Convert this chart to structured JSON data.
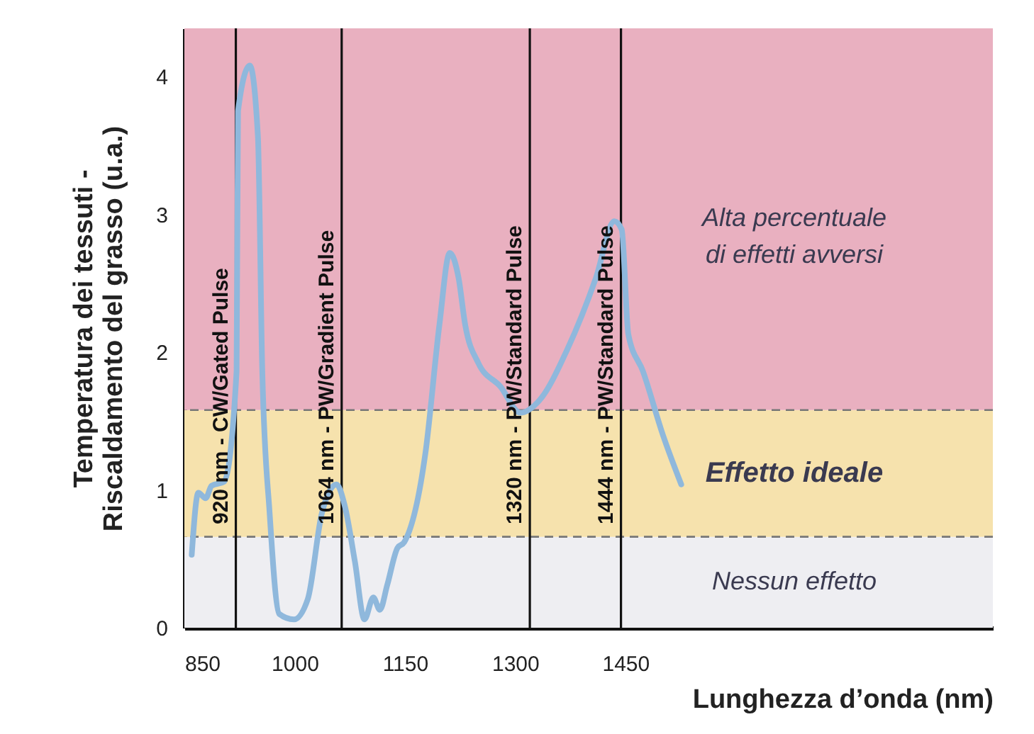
{
  "chart_data": {
    "type": "line",
    "xlabel": "Lunghezza d’onda (nm)",
    "ylabel": "Temperatura dei tessuti -\nRiscaldamento del grasso (u.a.)",
    "x": [
      860,
      869,
      879,
      887,
      904,
      921,
      923,
      939,
      950,
      956,
      966,
      979,
      999,
      1018,
      1037,
      1057,
      1068,
      1082,
      1095,
      1107,
      1116,
      1126,
      1140,
      1149,
      1178,
      1197,
      1211,
      1223,
      1232,
      1250,
      1280,
      1307,
      1333,
      1371,
      1410,
      1435,
      1445,
      1454,
      1474,
      1501,
      1526
    ],
    "series": [
      {
        "color": "#8fb8dc",
        "values": [
          0.53,
          0.98,
          0.94,
          1.03,
          1.06,
          1.86,
          3.75,
          4.08,
          3.57,
          1.86,
          0.83,
          0.1,
          0.06,
          0.21,
          0.83,
          1.04,
          0.89,
          0.48,
          0.06,
          0.22,
          0.13,
          0.31,
          0.58,
          0.62,
          1.27,
          2.2,
          2.72,
          2.54,
          2.2,
          1.92,
          1.75,
          1.56,
          1.65,
          2.02,
          2.54,
          2.95,
          2.89,
          2.13,
          1.86,
          1.4,
          1.04
        ]
      }
    ],
    "xlim": [
      850,
      1950
    ],
    "xticks": [
      850,
      1000,
      1150,
      1300,
      1450
    ],
    "ylim": [
      0,
      4.35
    ],
    "yticks": [
      0,
      1,
      2,
      3,
      4
    ],
    "marker": "none",
    "line_style": "solid",
    "bands": [
      {
        "axis": "y",
        "from": 0,
        "to": 0.66,
        "label": "Nessun effetto",
        "color": "#eeeef2"
      },
      {
        "axis": "y",
        "from": 0.66,
        "to": 1.58,
        "label": "Effetto ideale",
        "color": "#f6e2ad"
      },
      {
        "axis": "y",
        "from": 1.58,
        "to": 4.35,
        "label": "Alta percentuale\ndi effetti avversi",
        "color": "#e9b0c0"
      }
    ],
    "ref_lines": [
      {
        "axis": "y",
        "value": 0.66,
        "line_style": "dashed",
        "color": "#777777"
      },
      {
        "axis": "y",
        "value": 1.58,
        "line_style": "dashed",
        "color": "#777777"
      },
      {
        "axis": "x",
        "value": 920,
        "label": "920 nm - CW/Gated Pulse",
        "color": "#111111"
      },
      {
        "axis": "x",
        "value": 1064,
        "label": "1064 nm - PW/Gradient Pulse",
        "color": "#111111"
      },
      {
        "axis": "x",
        "value": 1320,
        "label": "1320 nm - PW/Standard Pulse",
        "color": "#111111"
      },
      {
        "axis": "x",
        "value": 1444,
        "label": "1444 nm - PW/Standard Pulse",
        "color": "#111111"
      }
    ]
  }
}
